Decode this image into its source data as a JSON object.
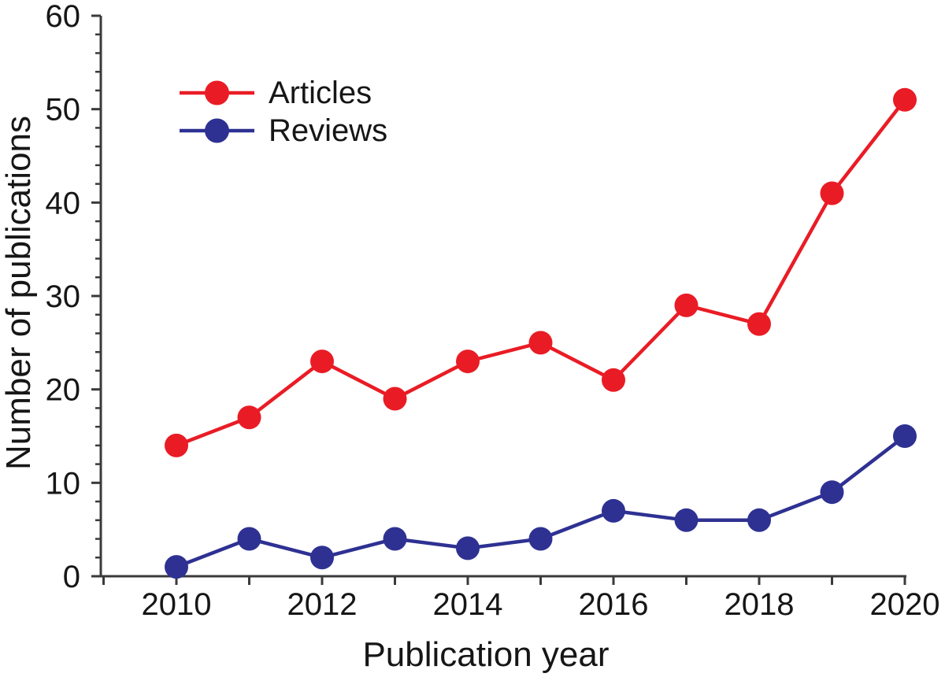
{
  "figure": {
    "background": "#ffffff",
    "axis_color": "#3a3a3c",
    "text_color": "#161616"
  },
  "chart_data": {
    "type": "line",
    "title": "",
    "xlabel": "Publication year",
    "ylabel": "Number of publications",
    "x": [
      2010,
      2011,
      2012,
      2013,
      2014,
      2015,
      2016,
      2017,
      2018,
      2019,
      2020
    ],
    "series": [
      {
        "name": "Articles",
        "color": "#e91c25",
        "marker": "circle",
        "values": [
          14,
          17,
          23,
          19,
          23,
          25,
          21,
          29,
          27,
          41,
          51
        ]
      },
      {
        "name": "Reviews",
        "color": "#2e3192",
        "marker": "circle",
        "values": [
          1,
          4,
          2,
          4,
          3,
          4,
          7,
          6,
          6,
          9,
          15
        ]
      }
    ],
    "ylim": [
      0,
      60
    ],
    "y_major_ticks": [
      0,
      10,
      20,
      30,
      40,
      50,
      60
    ],
    "y_minor_step": 2,
    "x_axis_tick_years": [
      2009,
      2010,
      2011,
      2012,
      2013,
      2014,
      2015,
      2016,
      2017,
      2018,
      2019,
      2020
    ],
    "x_labeled_years": [
      2010,
      2012,
      2014,
      2016,
      2018,
      2020
    ],
    "grid": false,
    "legend_position": "top-left",
    "legend_entries": [
      "Articles",
      "Reviews"
    ]
  }
}
